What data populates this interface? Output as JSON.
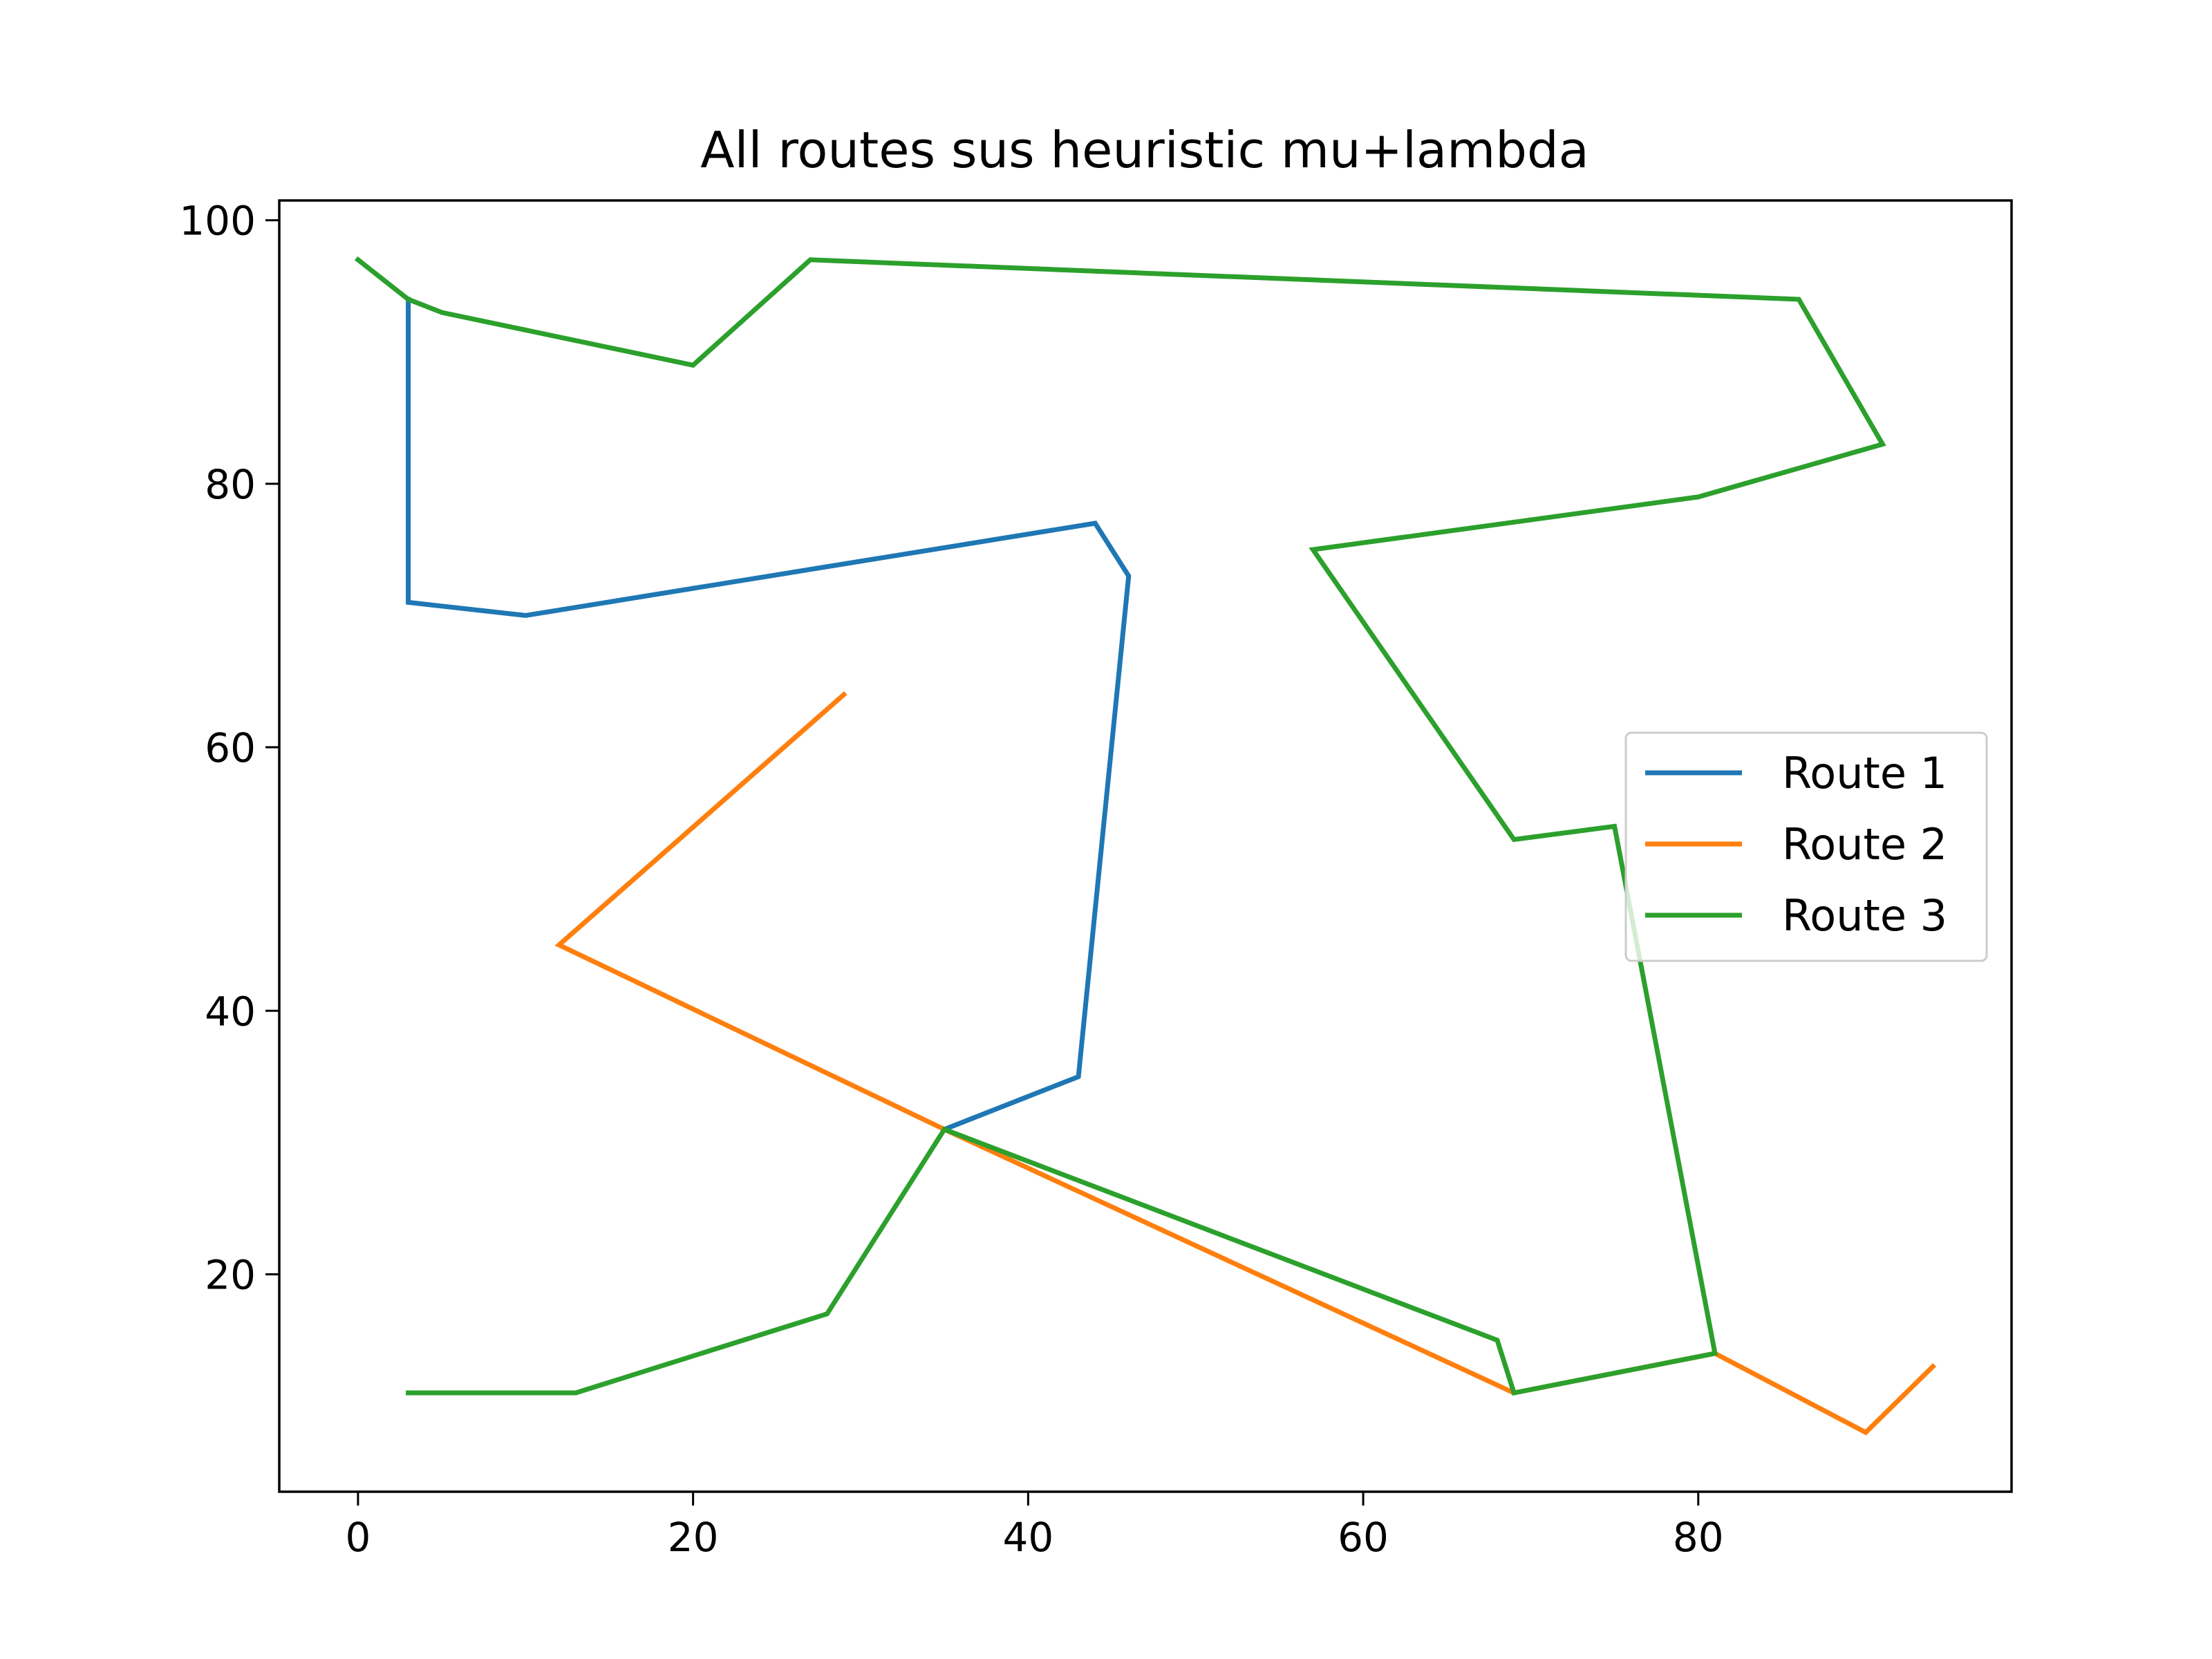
{
  "chart_data": {
    "type": "line",
    "title": "All routes sus heuristic mu+lambda",
    "xlabel": "",
    "ylabel": "",
    "xlim": [
      -4.7,
      98.7
    ],
    "ylim": [
      3.5,
      101.5
    ],
    "x_ticks": [
      0,
      20,
      40,
      60,
      80
    ],
    "y_ticks": [
      20,
      40,
      60,
      80,
      100
    ],
    "grid": false,
    "legend_position": "center-right",
    "series": [
      {
        "name": "Route 1",
        "color": "#1f77b4",
        "points": [
          [
            3,
            94
          ],
          [
            3,
            71
          ],
          [
            10,
            70
          ],
          [
            44,
            77
          ],
          [
            46,
            73
          ],
          [
            43,
            35
          ],
          [
            35,
            31
          ]
        ]
      },
      {
        "name": "Route 2",
        "color": "#ff7f0e",
        "points": [
          [
            29,
            64
          ],
          [
            12,
            45
          ],
          [
            35,
            31
          ],
          [
            69,
            11
          ],
          [
            81,
            14
          ],
          [
            90,
            8
          ],
          [
            94,
            13
          ]
        ]
      },
      {
        "name": "Route 3",
        "color": "#2ca02c",
        "points": [
          [
            0,
            97
          ],
          [
            3,
            94
          ],
          [
            5,
            93
          ],
          [
            20,
            89
          ],
          [
            27,
            97
          ],
          [
            86,
            94
          ],
          [
            91,
            83
          ],
          [
            80,
            79
          ],
          [
            57,
            75
          ],
          [
            69,
            53
          ],
          [
            75,
            54
          ],
          [
            81,
            14
          ],
          [
            69,
            11
          ],
          [
            68,
            15
          ],
          [
            35,
            31
          ],
          [
            28,
            17
          ],
          [
            13,
            11
          ],
          [
            3,
            11
          ]
        ]
      }
    ]
  }
}
